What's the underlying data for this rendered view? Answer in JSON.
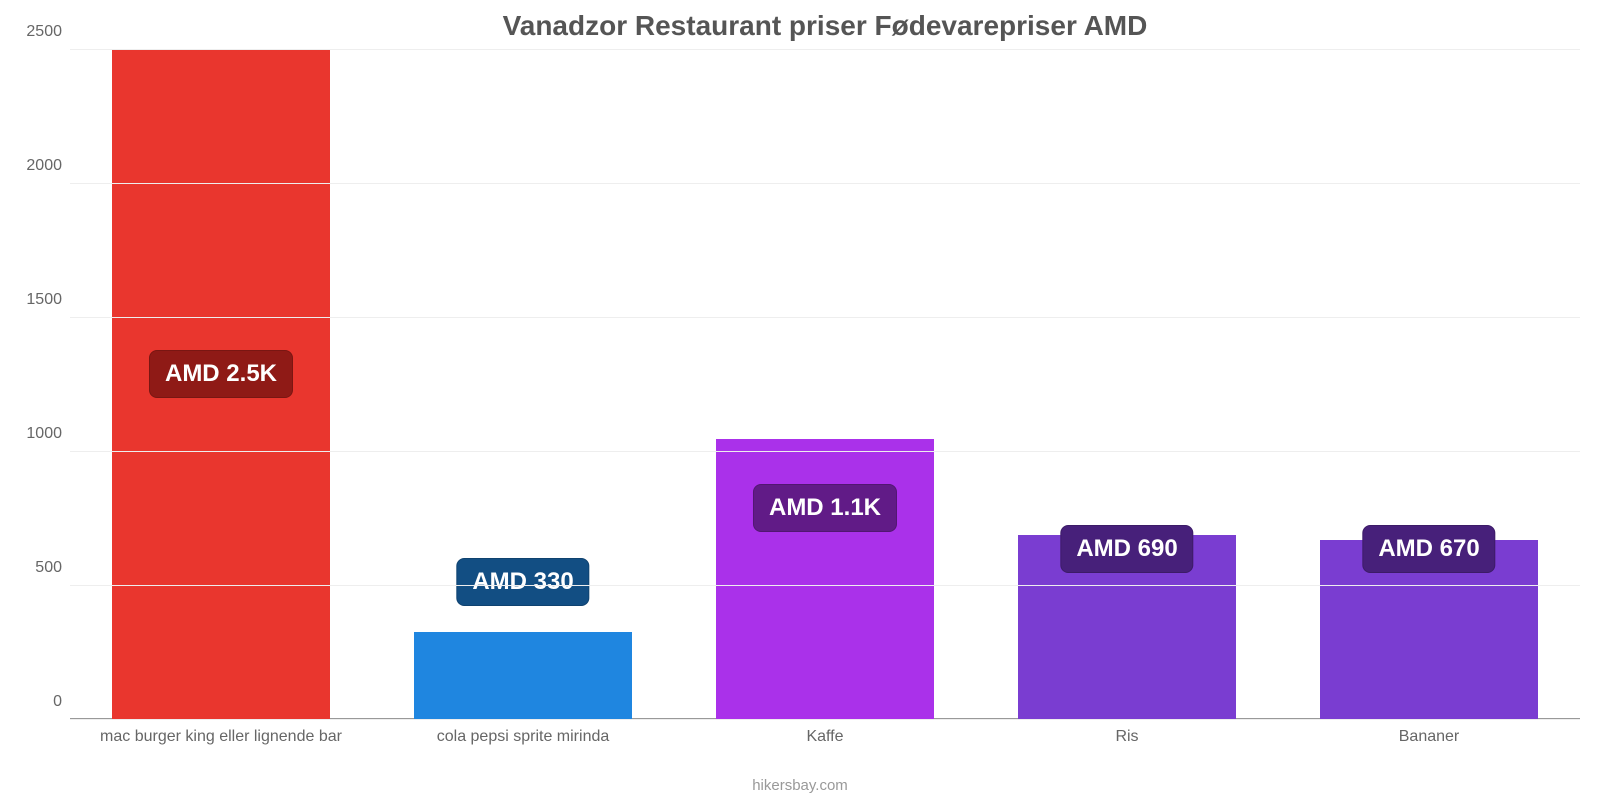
{
  "chart": {
    "type": "bar",
    "title": "Vanadzor Restaurant priser Fødevarepriser AMD",
    "title_color": "#555555",
    "title_fontsize": 28,
    "source": "hikersbay.com",
    "background_color": "#ffffff",
    "grid_color": "#eeeeee",
    "axis_color": "#999999",
    "tick_color": "#666666",
    "label_fontsize": 16,
    "ylim": [
      0,
      2500
    ],
    "ytick_step": 500,
    "yticks": [
      0,
      500,
      1000,
      1500,
      2000,
      2500
    ],
    "bar_width_pct": 72,
    "data_label_fontsize": 24,
    "categories": [
      "mac burger king eller lignende bar",
      "cola pepsi sprite mirinda",
      "Kaffe",
      "Ris",
      "Bananer"
    ],
    "values": [
      2500,
      330,
      1050,
      690,
      670
    ],
    "value_labels": [
      "AMD 2.5K",
      "AMD 330",
      "AMD 1.1K",
      "AMD 690",
      "AMD 670"
    ],
    "bar_colors": [
      "#e9362e",
      "#1f86e0",
      "#aa31ea",
      "#7a3dd1",
      "#7a3dd1"
    ],
    "label_bg_colors": [
      "#8f1a16",
      "#124e83",
      "#611b87",
      "#47207a",
      "#47207a"
    ],
    "label_y_offsets": [
      0.48,
      0.17,
      0.28,
      0.22,
      0.22
    ]
  }
}
